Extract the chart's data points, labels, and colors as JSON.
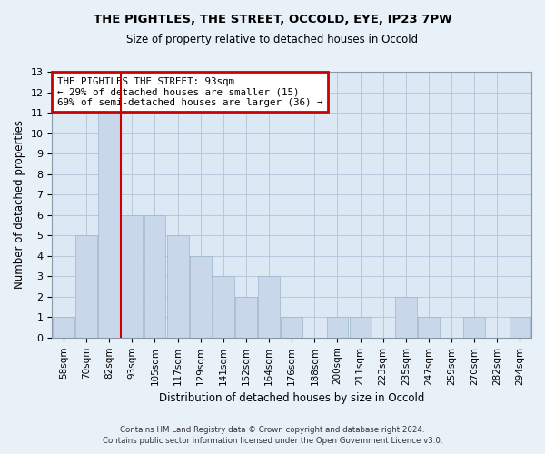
{
  "title_line1": "THE PIGHTLES, THE STREET, OCCOLD, EYE, IP23 7PW",
  "title_line2": "Size of property relative to detached houses in Occold",
  "xlabel": "Distribution of detached houses by size in Occold",
  "ylabel": "Number of detached properties",
  "bar_labels": [
    "58sqm",
    "70sqm",
    "82sqm",
    "93sqm",
    "105sqm",
    "117sqm",
    "129sqm",
    "141sqm",
    "152sqm",
    "164sqm",
    "176sqm",
    "188sqm",
    "200sqm",
    "211sqm",
    "223sqm",
    "235sqm",
    "247sqm",
    "259sqm",
    "270sqm",
    "282sqm",
    "294sqm"
  ],
  "bar_heights": [
    1,
    5,
    11,
    6,
    6,
    5,
    4,
    3,
    2,
    3,
    1,
    0,
    1,
    1,
    0,
    2,
    1,
    0,
    1,
    0,
    1
  ],
  "bar_color": "#c8d8ea",
  "bar_edge_color": "#9ab5cc",
  "annotation_line1": "THE PIGHTLES THE STREET: 93sqm",
  "annotation_line2": "← 29% of detached houses are smaller (15)",
  "annotation_line3": "69% of semi-detached houses are larger (36) →",
  "marker_color": "#cc0000",
  "ylim": [
    0,
    13
  ],
  "yticks": [
    0,
    1,
    2,
    3,
    4,
    5,
    6,
    7,
    8,
    9,
    10,
    11,
    12,
    13
  ],
  "footer_line1": "Contains HM Land Registry data © Crown copyright and database right 2024.",
  "footer_line2": "Contains public sector information licensed under the Open Government Licence v3.0.",
  "bg_color": "#e8f0f8",
  "plot_bg_color": "#dce8f4",
  "grid_color": "#b0c4d8"
}
